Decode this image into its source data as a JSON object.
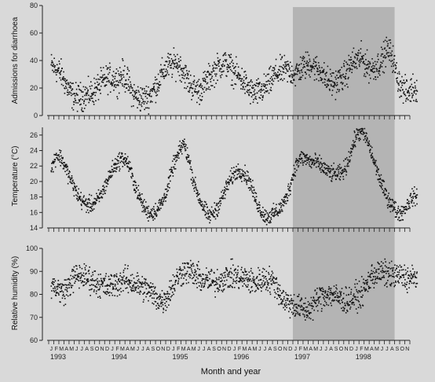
{
  "chart_data": {
    "type": "scatter",
    "xlabel": "Month and year",
    "month_letters": [
      "J",
      "F",
      "M",
      "A",
      "M",
      "J",
      "J",
      "A",
      "S",
      "O",
      "N",
      "D"
    ],
    "years": [
      "1993",
      "1994",
      "1995",
      "1996",
      "1997",
      "1998"
    ],
    "x_range": [
      "1993-01",
      "1998-11"
    ],
    "shaded_period": {
      "start": "1997-01",
      "end": "1998-08"
    },
    "grid": false,
    "panels": [
      {
        "name": "diarrhoea",
        "ylabel": "Admissions for diarrhoea",
        "ylim": [
          0,
          80
        ],
        "ticks": [
          "0",
          "20",
          "40",
          "60",
          "80"
        ],
        "monthly_mean": [
          36,
          34,
          30,
          22,
          15,
          13,
          14,
          15,
          16,
          20,
          24,
          27,
          27,
          26,
          30,
          25,
          16,
          13,
          12,
          13,
          18,
          24,
          32,
          36,
          37,
          38,
          32,
          24,
          20,
          18,
          22,
          27,
          32,
          36,
          38,
          36,
          31,
          28,
          24,
          18,
          16,
          17,
          20,
          24,
          30,
          32,
          33,
          32,
          30,
          34,
          36,
          38,
          34,
          33,
          26,
          24,
          24,
          27,
          30,
          38,
          40,
          42,
          36,
          34,
          36,
          40,
          48,
          44,
          28,
          20,
          16,
          20
        ]
      },
      {
        "name": "temperature",
        "ylabel": "Temperature (°C)",
        "ylim": [
          14,
          27
        ],
        "ticks": [
          "14",
          "16",
          "18",
          "20",
          "22",
          "24",
          "26"
        ],
        "monthly_mean": [
          21.5,
          23.5,
          23,
          21.5,
          20,
          18.5,
          17.5,
          17,
          17,
          17.5,
          18.5,
          20,
          21.5,
          22.5,
          23,
          22.5,
          20.5,
          18.5,
          17,
          16,
          16,
          16.5,
          17.5,
          19.5,
          22,
          23.5,
          25,
          23,
          20,
          18,
          16.5,
          15.5,
          16,
          17,
          18.5,
          20,
          21,
          21.5,
          21,
          20,
          18,
          16.5,
          15.5,
          15.5,
          16,
          16.5,
          17.5,
          19.5,
          22,
          23,
          23,
          22.5,
          22.5,
          22,
          21.5,
          21,
          21,
          21,
          22,
          24,
          26,
          26.5,
          25.5,
          23.5,
          21.5,
          19.5,
          18,
          17,
          16,
          16,
          17,
          18
        ]
      },
      {
        "name": "humidity",
        "ylabel": "Relative humidity (%)",
        "ylim": [
          60,
          100
        ],
        "ticks": [
          "60",
          "70",
          "80",
          "90",
          "100"
        ],
        "monthly_mean": [
          84,
          83,
          81,
          82,
          86,
          88,
          88,
          87,
          86,
          85,
          84,
          83,
          84,
          85,
          86,
          86,
          85,
          84,
          83,
          82,
          80,
          78,
          77,
          80,
          84,
          88,
          90,
          90,
          89,
          87,
          86,
          86,
          85,
          86,
          87,
          88,
          88,
          87,
          87,
          86,
          85,
          86,
          87,
          86,
          85,
          80,
          77,
          76,
          75,
          74,
          73,
          74,
          77,
          79,
          80,
          80,
          79,
          78,
          77,
          78,
          79,
          80,
          84,
          88,
          89,
          89,
          89,
          88,
          88,
          88,
          87,
          87
        ]
      }
    ]
  }
}
